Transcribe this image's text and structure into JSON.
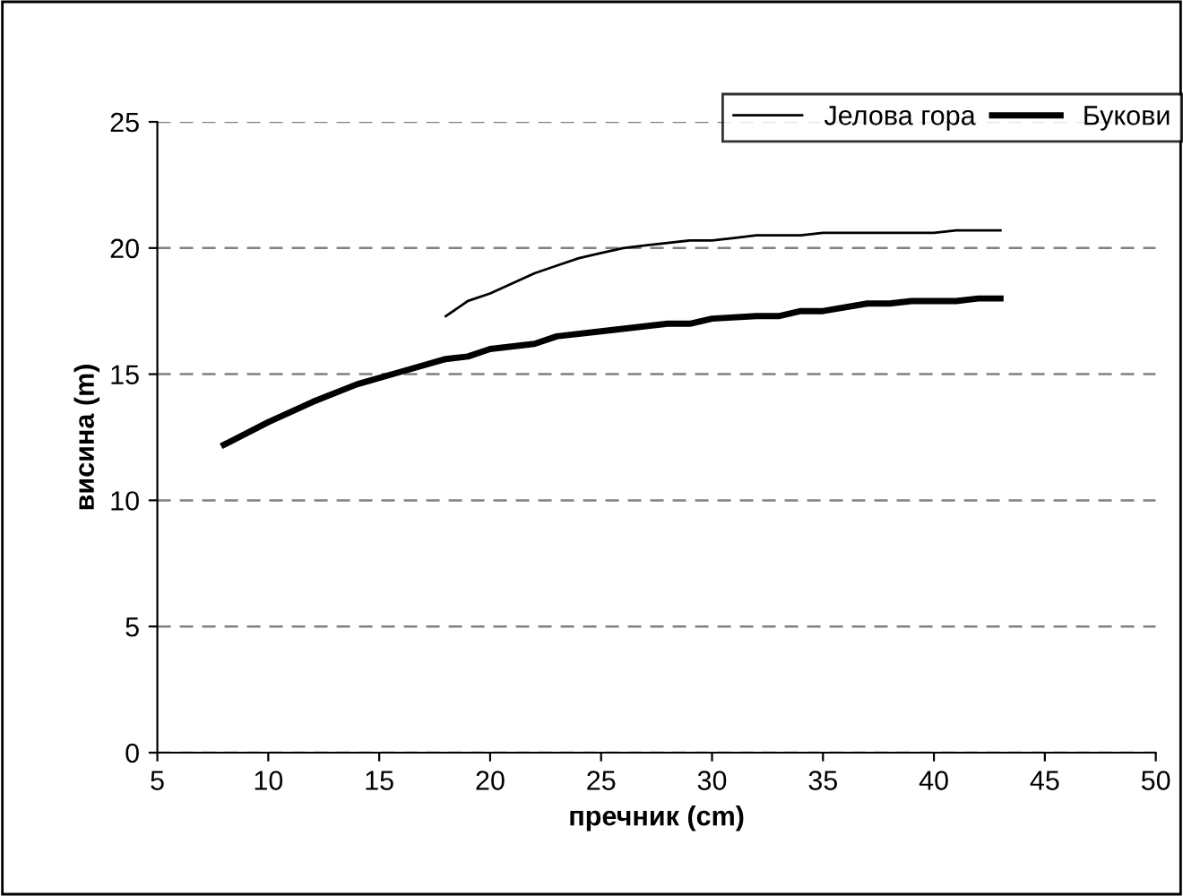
{
  "chart_data": {
    "type": "line",
    "xlabel": "пречник (cm)",
    "ylabel": "висина (m)",
    "xlim": [
      5,
      50
    ],
    "xticks": [
      5,
      10,
      15,
      20,
      25,
      30,
      35,
      40,
      45,
      50
    ],
    "ylim": [
      0,
      25
    ],
    "yticks": [
      0,
      5,
      10,
      15,
      20,
      25
    ],
    "grid": "y",
    "legend": "top right",
    "marker": "none",
    "series": [
      {
        "name": "Јелова гора",
        "color": "#000000",
        "x": [
          18,
          19,
          20,
          21,
          22,
          23,
          24,
          25,
          26,
          27,
          28,
          29,
          30,
          31,
          32,
          33,
          34,
          35,
          36,
          37,
          38,
          39,
          40,
          41,
          42,
          43
        ],
        "values": [
          17.3,
          17.9,
          18.2,
          18.6,
          19.0,
          19.3,
          19.6,
          19.8,
          20.0,
          20.1,
          20.2,
          20.3,
          20.3,
          20.4,
          20.5,
          20.5,
          20.5,
          20.6,
          20.6,
          20.6,
          20.6,
          20.6,
          20.6,
          20.7,
          20.7,
          20.7
        ]
      },
      {
        "name": "Букови",
        "color": "#000000",
        "x": [
          8,
          10,
          12,
          14,
          16,
          18,
          19,
          20,
          22,
          23,
          25,
          28,
          29,
          30,
          32,
          33,
          34,
          35,
          37,
          38,
          39,
          40,
          41,
          42,
          43
        ],
        "values": [
          12.2,
          13.1,
          13.9,
          14.6,
          15.1,
          15.6,
          15.7,
          16.0,
          16.2,
          16.5,
          16.7,
          17.0,
          17.0,
          17.2,
          17.3,
          17.3,
          17.5,
          17.5,
          17.8,
          17.8,
          17.9,
          17.9,
          17.9,
          18.0,
          18.0
        ]
      }
    ]
  }
}
